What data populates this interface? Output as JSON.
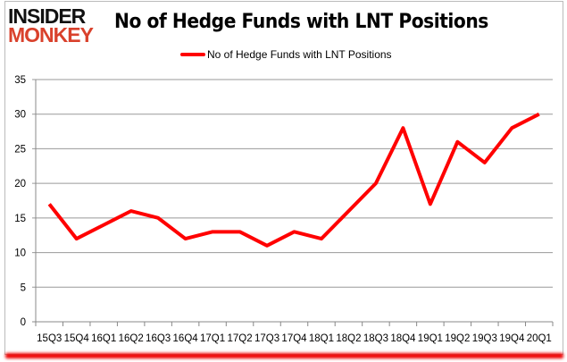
{
  "logo": {
    "line1": "INSIDER",
    "line2": "MONKEY"
  },
  "chart_data": {
    "type": "line",
    "title": "No of Hedge Funds with LNT Positions",
    "categories": [
      "15Q3",
      "15Q4",
      "16Q1",
      "16Q2",
      "16Q3",
      "16Q4",
      "17Q1",
      "17Q2",
      "17Q3",
      "17Q4",
      "18Q1",
      "18Q2",
      "18Q3",
      "18Q4",
      "19Q1",
      "19Q2",
      "19Q3",
      "19Q4",
      "20Q1"
    ],
    "series": [
      {
        "name": "No of Hedge Funds with LNT Positions",
        "color": "#ff0000",
        "values": [
          17,
          12,
          14,
          16,
          15,
          12,
          13,
          13,
          11,
          13,
          12,
          16,
          20,
          28,
          17,
          26,
          23,
          28,
          30
        ]
      }
    ],
    "ylim": [
      0,
      35
    ],
    "yticks": [
      0,
      5,
      10,
      15,
      20,
      25,
      30,
      35
    ],
    "grid": true,
    "legend": "top-center"
  }
}
